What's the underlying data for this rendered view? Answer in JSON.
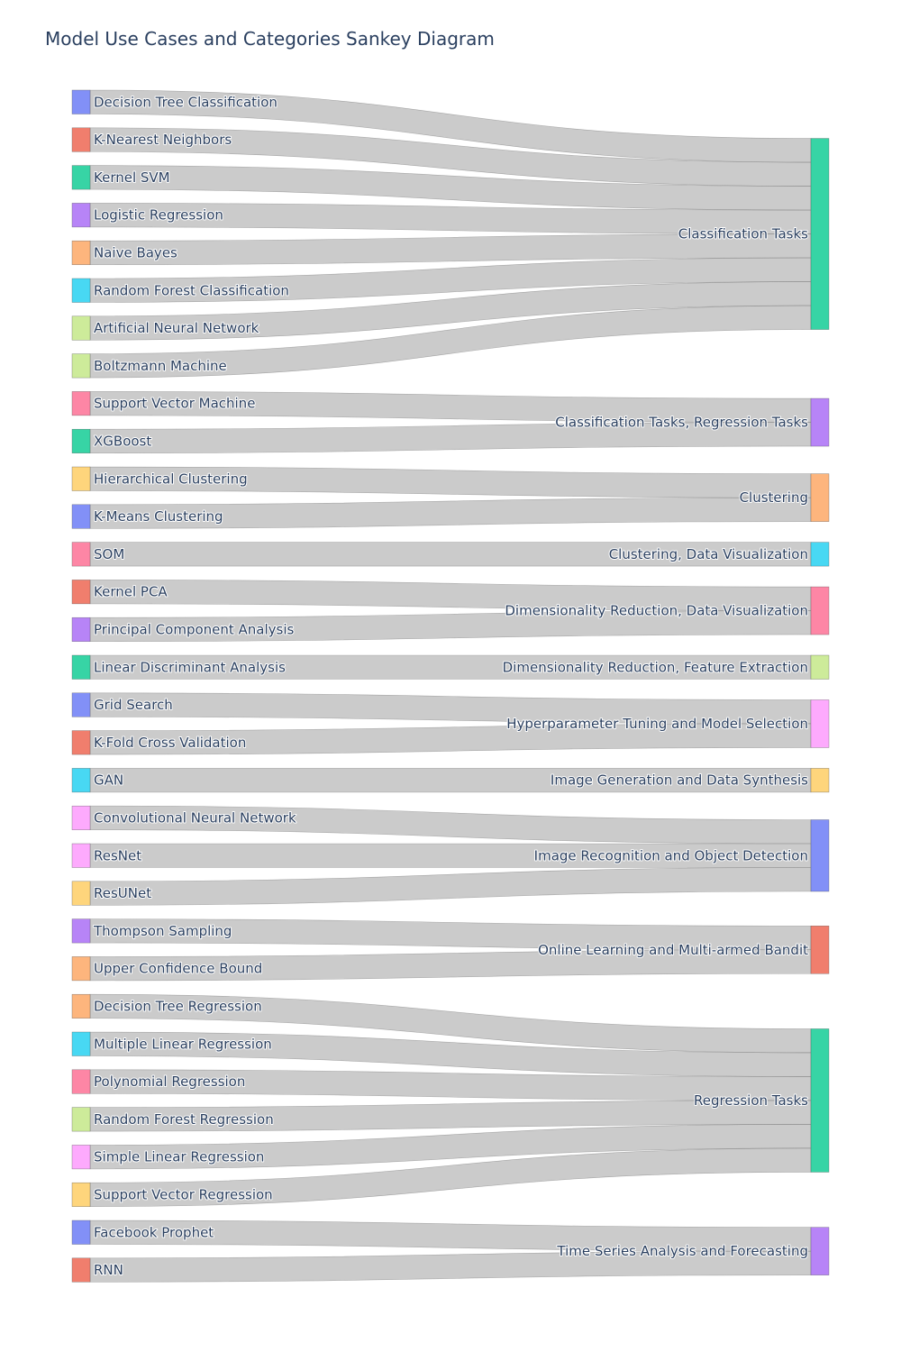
{
  "title": "Model Use Cases and Categories Sankey Diagram",
  "chart_data": {
    "type": "sankey",
    "sources": [
      {
        "label": "Decision Tree Classification",
        "color": "#8290f7"
      },
      {
        "label": "K-Nearest Neighbors",
        "color": "#f07e6d"
      },
      {
        "label": "Kernel SVM",
        "color": "#37d4a5"
      },
      {
        "label": "Logistic Regression",
        "color": "#b784f7"
      },
      {
        "label": "Naive Bayes",
        "color": "#fdb57d"
      },
      {
        "label": "Random Forest Classification",
        "color": "#48d8f3"
      },
      {
        "label": "Artificial Neural Network",
        "color": "#cdeb9a"
      },
      {
        "label": "Boltzmann Machine",
        "color": "#cdeb9a"
      },
      {
        "label": "Support Vector Machine",
        "color": "#fd86a5"
      },
      {
        "label": "XGBoost",
        "color": "#37d4a5"
      },
      {
        "label": "Hierarchical Clustering",
        "color": "#fed57c"
      },
      {
        "label": "K-Means Clustering",
        "color": "#8290f7"
      },
      {
        "label": "SOM",
        "color": "#fd86a5"
      },
      {
        "label": "Kernel PCA",
        "color": "#f07e6d"
      },
      {
        "label": "Principal Component Analysis",
        "color": "#b784f7"
      },
      {
        "label": "Linear Discriminant Analysis",
        "color": "#37d4a5"
      },
      {
        "label": "Grid Search",
        "color": "#8290f7"
      },
      {
        "label": "K-Fold Cross Validation",
        "color": "#f07e6d"
      },
      {
        "label": "GAN",
        "color": "#48d8f3"
      },
      {
        "label": "Convolutional Neural Network",
        "color": "#fdaafd"
      },
      {
        "label": "ResNet",
        "color": "#fdaafd"
      },
      {
        "label": "ResUNet",
        "color": "#fed57c"
      },
      {
        "label": "Thompson Sampling",
        "color": "#b784f7"
      },
      {
        "label": "Upper Confidence Bound",
        "color": "#fdb57d"
      },
      {
        "label": "Decision Tree Regression",
        "color": "#fdb57d"
      },
      {
        "label": "Multiple Linear Regression",
        "color": "#48d8f3"
      },
      {
        "label": "Polynomial Regression",
        "color": "#fd86a5"
      },
      {
        "label": "Random Forest Regression",
        "color": "#cdeb9a"
      },
      {
        "label": "Simple Linear Regression",
        "color": "#fdaafd"
      },
      {
        "label": "Support Vector Regression",
        "color": "#fed57c"
      },
      {
        "label": "Facebook Prophet",
        "color": "#8290f7"
      },
      {
        "label": "RNN",
        "color": "#f07e6d"
      }
    ],
    "targets": [
      {
        "label": "Classification Tasks",
        "color": "#37d4a5"
      },
      {
        "label": "Classification Tasks, Regression Tasks",
        "color": "#b784f7"
      },
      {
        "label": "Clustering",
        "color": "#fdb57d"
      },
      {
        "label": "Clustering, Data Visualization",
        "color": "#48d8f3"
      },
      {
        "label": "Dimensionality Reduction, Data Visualization",
        "color": "#fd86a5"
      },
      {
        "label": "Dimensionality Reduction, Feature Extraction",
        "color": "#cdeb9a"
      },
      {
        "label": "Hyperparameter Tuning and Model Selection",
        "color": "#fdaafd"
      },
      {
        "label": "Image Generation and Data Synthesis",
        "color": "#fed57c"
      },
      {
        "label": "Image Recognition and Object Detection",
        "color": "#8290f7"
      },
      {
        "label": "Online Learning and Multi-armed Bandit",
        "color": "#f07e6d"
      },
      {
        "label": "Regression Tasks",
        "color": "#37d4a5"
      },
      {
        "label": "Time Series Analysis and Forecasting",
        "color": "#b784f7"
      }
    ],
    "links": [
      {
        "source": 0,
        "target": 0,
        "value": 1
      },
      {
        "source": 1,
        "target": 0,
        "value": 1
      },
      {
        "source": 2,
        "target": 0,
        "value": 1
      },
      {
        "source": 3,
        "target": 0,
        "value": 1
      },
      {
        "source": 4,
        "target": 0,
        "value": 1
      },
      {
        "source": 5,
        "target": 0,
        "value": 1
      },
      {
        "source": 6,
        "target": 0,
        "value": 1
      },
      {
        "source": 7,
        "target": 0,
        "value": 1
      },
      {
        "source": 8,
        "target": 1,
        "value": 1
      },
      {
        "source": 9,
        "target": 1,
        "value": 1
      },
      {
        "source": 10,
        "target": 2,
        "value": 1
      },
      {
        "source": 11,
        "target": 2,
        "value": 1
      },
      {
        "source": 12,
        "target": 3,
        "value": 1
      },
      {
        "source": 13,
        "target": 4,
        "value": 1
      },
      {
        "source": 14,
        "target": 4,
        "value": 1
      },
      {
        "source": 15,
        "target": 5,
        "value": 1
      },
      {
        "source": 16,
        "target": 6,
        "value": 1
      },
      {
        "source": 17,
        "target": 6,
        "value": 1
      },
      {
        "source": 18,
        "target": 7,
        "value": 1
      },
      {
        "source": 19,
        "target": 8,
        "value": 1
      },
      {
        "source": 20,
        "target": 8,
        "value": 1
      },
      {
        "source": 21,
        "target": 8,
        "value": 1
      },
      {
        "source": 22,
        "target": 9,
        "value": 1
      },
      {
        "source": 23,
        "target": 9,
        "value": 1
      },
      {
        "source": 24,
        "target": 10,
        "value": 1
      },
      {
        "source": 25,
        "target": 10,
        "value": 1
      },
      {
        "source": 26,
        "target": 10,
        "value": 1
      },
      {
        "source": 27,
        "target": 10,
        "value": 1
      },
      {
        "source": 28,
        "target": 10,
        "value": 1
      },
      {
        "source": 29,
        "target": 10,
        "value": 1
      },
      {
        "source": 30,
        "target": 11,
        "value": 1
      },
      {
        "source": 31,
        "target": 11,
        "value": 1
      }
    ]
  }
}
